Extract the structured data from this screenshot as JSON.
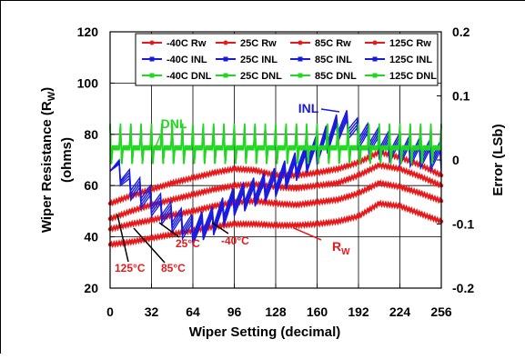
{
  "chart_data": {
    "type": "line",
    "title": "",
    "xlabel": "Wiper Setting (decimal)",
    "ylabel": "Wiper Resistance (R_W)\n(ohms)",
    "ylabel_line1": "Wiper Resistance (R",
    "ylabel_sub": "W",
    "ylabel_close": ")",
    "ylabel_line2": "(ohms)",
    "y2label": "Error (LSb)",
    "xlim": [
      0,
      256
    ],
    "ylim": [
      20,
      120
    ],
    "y2lim": [
      -0.2,
      0.2
    ],
    "xticks": [
      0,
      32,
      64,
      96,
      128,
      160,
      192,
      224,
      256
    ],
    "yticks": [
      20,
      40,
      60,
      80,
      100,
      120
    ],
    "y2ticks": [
      -0.2,
      -0.1,
      0,
      0.1,
      0.2
    ],
    "y2ticklabels": [
      "-0.2",
      "-0.1",
      "0",
      "0.1",
      "0.2"
    ],
    "grid": true,
    "legend_position": "top",
    "legend": [
      "-40C Rw",
      "25C Rw",
      "85C Rw",
      "125C Rw",
      "-40C INL",
      "25C INL",
      "85C INL",
      "125C INL",
      "-40C DNL",
      "25C DNL",
      "85C DNL",
      "125C DNL"
    ],
    "series": [
      {
        "name": "-40C Rw",
        "axis": "left",
        "color": "#e8191a",
        "x": [
          0,
          16,
          32,
          48,
          64,
          80,
          96,
          112,
          128,
          144,
          160,
          176,
          192,
          208,
          224,
          240,
          256
        ],
        "y": [
          37,
          38,
          39.5,
          41,
          42.5,
          44,
          45,
          45,
          44.5,
          44.5,
          45,
          46,
          48,
          53,
          52,
          49,
          46
        ]
      },
      {
        "name": "25C Rw",
        "axis": "left",
        "color": "#e8191a",
        "x": [
          0,
          16,
          32,
          48,
          64,
          80,
          96,
          112,
          128,
          144,
          160,
          176,
          192,
          208,
          224,
          240,
          256
        ],
        "y": [
          43,
          45,
          46.5,
          48.5,
          50,
          52,
          53.5,
          54,
          53,
          52.5,
          53.5,
          54.5,
          57,
          61,
          59.5,
          57,
          54
        ]
      },
      {
        "name": "85C Rw",
        "axis": "left",
        "color": "#e8191a",
        "x": [
          0,
          16,
          32,
          48,
          64,
          80,
          96,
          112,
          128,
          144,
          160,
          176,
          192,
          208,
          224,
          240,
          256
        ],
        "y": [
          47,
          50,
          52.5,
          54.5,
          56.5,
          58.5,
          60,
          60.5,
          59.5,
          59,
          60,
          61,
          64,
          68,
          66.5,
          63.5,
          60
        ]
      },
      {
        "name": "125C Rw",
        "axis": "left",
        "color": "#e8191a",
        "x": [
          0,
          16,
          32,
          48,
          64,
          80,
          96,
          112,
          128,
          144,
          160,
          176,
          192,
          208,
          224,
          240,
          256
        ],
        "y": [
          53,
          56,
          58.5,
          61,
          63,
          65,
          66.5,
          66,
          64,
          64,
          65,
          66.5,
          69,
          73,
          71,
          68,
          64
        ]
      },
      {
        "name": "-40C INL",
        "axis": "right",
        "color": "#1a1adf",
        "x": [
          0,
          16,
          32,
          48,
          64,
          80,
          96,
          112,
          128,
          144,
          160,
          176,
          184,
          192,
          208,
          224,
          240,
          256
        ],
        "y": [
          0.0,
          -0.035,
          -0.06,
          -0.085,
          -0.105,
          -0.09,
          -0.06,
          -0.045,
          -0.03,
          -0.005,
          0.02,
          0.055,
          0.06,
          0.045,
          0.03,
          0.02,
          0.015,
          0.01
        ]
      },
      {
        "name": "25C INL",
        "axis": "right",
        "color": "#1a1adf",
        "x": [
          0,
          16,
          32,
          48,
          64,
          80,
          96,
          112,
          128,
          144,
          160,
          176,
          184,
          192,
          208,
          224,
          240,
          256
        ],
        "y": [
          0.0,
          -0.04,
          -0.065,
          -0.09,
          -0.11,
          -0.095,
          -0.065,
          -0.05,
          -0.035,
          -0.01,
          0.015,
          0.05,
          0.055,
          0.04,
          0.025,
          0.015,
          0.01,
          0.005
        ]
      },
      {
        "name": "85C INL",
        "axis": "right",
        "color": "#1a1adf",
        "x": [
          0,
          16,
          32,
          48,
          64,
          80,
          96,
          112,
          128,
          144,
          160,
          176,
          184,
          192,
          208,
          224,
          240,
          256
        ],
        "y": [
          0.0,
          -0.03,
          -0.055,
          -0.08,
          -0.1,
          -0.085,
          -0.055,
          -0.04,
          -0.025,
          0.0,
          0.025,
          0.06,
          0.065,
          0.05,
          0.035,
          0.025,
          0.02,
          0.015
        ]
      },
      {
        "name": "125C INL",
        "axis": "right",
        "color": "#1a1adf",
        "x": [
          0,
          16,
          32,
          48,
          64,
          80,
          96,
          112,
          128,
          144,
          160,
          176,
          184,
          192,
          208,
          224,
          240,
          256
        ],
        "y": [
          0.0,
          -0.045,
          -0.07,
          -0.095,
          -0.115,
          -0.1,
          -0.07,
          -0.055,
          -0.04,
          -0.015,
          0.01,
          0.045,
          0.05,
          0.035,
          0.02,
          0.01,
          0.005,
          0.0
        ]
      },
      {
        "name": "-40C DNL",
        "axis": "right",
        "color": "#22d722",
        "x": [
          0,
          256
        ],
        "y": [
          0.0,
          0.0
        ]
      },
      {
        "name": "25C DNL",
        "axis": "right",
        "color": "#22d722",
        "x": [
          0,
          256
        ],
        "y": [
          0.0,
          0.0
        ]
      },
      {
        "name": "85C DNL",
        "axis": "right",
        "color": "#22d722",
        "x": [
          0,
          256
        ],
        "y": [
          0.0,
          0.0
        ]
      },
      {
        "name": "125C DNL",
        "axis": "right",
        "color": "#22d722",
        "x": [
          0,
          256
        ],
        "y": [
          0.0,
          0.0
        ]
      }
    ],
    "annotations": {
      "dnl": "DNL",
      "inl": "INL",
      "rw_main": "R",
      "rw_sub": "W",
      "t125": "125°C",
      "t85": "85°C",
      "t25": "25°C",
      "tm40": "-40°C"
    },
    "colors": {
      "rw": "#e8191a",
      "inl": "#1a1adf",
      "dnl": "#22d722"
    }
  }
}
